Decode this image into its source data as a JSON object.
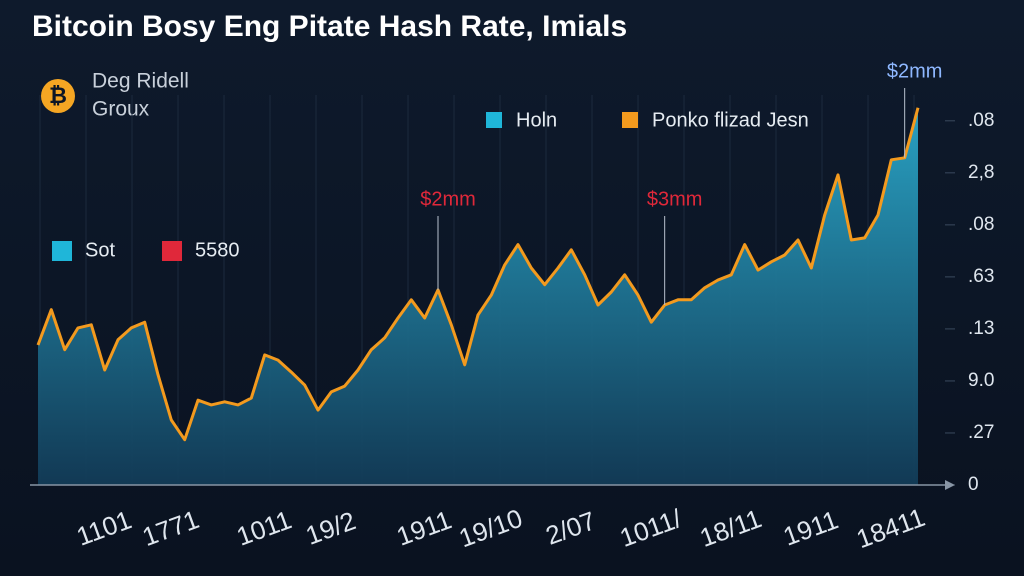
{
  "chart_data": {
    "type": "line",
    "title": "Bitcoin Bosy Eng Pitate Hash Rate, Imials",
    "subtitle": [
      "Deg Ridell",
      "Groux"
    ],
    "categories": [
      null,
      null,
      null,
      null,
      null,
      "1101",
      null,
      null,
      null,
      null,
      "1771",
      null,
      null,
      null,
      null,
      null,
      null,
      "1011",
      null,
      null,
      null,
      null,
      "19/2",
      null,
      null,
      null,
      null,
      null,
      null,
      "1911",
      null,
      null,
      null,
      null,
      "19/10",
      null,
      null,
      null,
      null,
      null,
      "2/07",
      null,
      null,
      null,
      null,
      null,
      "1011/",
      null,
      null,
      null,
      null,
      null,
      "18/11",
      null,
      null,
      null,
      null,
      null,
      "1911",
      null,
      null,
      null,
      null,
      null,
      "18411",
      null,
      null
    ],
    "series": [
      {
        "name": "Holn",
        "color": "#1fb6d9",
        "fill": true,
        "values": [
          2.69,
          3.37,
          2.6,
          3.02,
          3.08,
          2.21,
          2.79,
          3.02,
          3.13,
          2.12,
          1.25,
          0.87,
          1.63,
          1.54,
          1.6,
          1.54,
          1.67,
          2.5,
          2.4,
          2.17,
          1.92,
          1.44,
          1.79,
          1.9,
          2.21,
          2.6,
          2.83,
          3.21,
          3.56,
          3.21,
          3.75,
          3.08,
          2.31,
          3.27,
          3.65,
          4.23,
          4.62,
          4.17,
          3.85,
          4.17,
          4.52,
          4.04,
          3.46,
          3.71,
          4.04,
          3.65,
          3.13,
          3.46,
          3.56,
          3.56,
          3.79,
          3.94,
          4.04,
          4.62,
          4.13,
          4.29,
          4.42,
          4.71,
          4.17,
          5.19,
          5.96,
          4.71,
          4.75,
          5.19,
          6.25,
          6.29,
          7.25
        ]
      },
      {
        "name": "Ponko flizad Jesn",
        "color": "#f39a1e",
        "fill": false,
        "values": [
          2.69,
          3.37,
          2.6,
          3.02,
          3.08,
          2.21,
          2.79,
          3.02,
          3.13,
          2.12,
          1.25,
          0.87,
          1.63,
          1.54,
          1.6,
          1.54,
          1.67,
          2.5,
          2.4,
          2.17,
          1.92,
          1.44,
          1.79,
          1.9,
          2.21,
          2.6,
          2.83,
          3.21,
          3.56,
          3.21,
          3.75,
          3.08,
          2.31,
          3.27,
          3.65,
          4.23,
          4.62,
          4.17,
          3.85,
          4.17,
          4.52,
          4.04,
          3.46,
          3.71,
          4.04,
          3.65,
          3.13,
          3.46,
          3.56,
          3.56,
          3.79,
          3.94,
          4.04,
          4.62,
          4.13,
          4.29,
          4.42,
          4.71,
          4.17,
          5.19,
          5.96,
          4.71,
          4.75,
          5.19,
          6.25,
          6.29,
          7.25
        ]
      }
    ],
    "legend2": [
      {
        "name": "Sot",
        "color": "#1fb6d9"
      },
      {
        "name": "5580",
        "color": "#e0283a"
      }
    ],
    "annotations": [
      {
        "text": "$2mm",
        "at": 30,
        "color": "#e0283a"
      },
      {
        "text": "$3mm",
        "at": 47,
        "color": "#e0283a"
      },
      {
        "text": "$2mm",
        "at": 65,
        "color": "#8fb8ff"
      }
    ],
    "ylim": [
      0,
      7.4
    ],
    "yticks": [
      0,
      {
        "value": 1,
        "label": ".27"
      },
      {
        "value": 2,
        "label": "9.0"
      },
      {
        "value": 3,
        "label": ".13"
      },
      {
        "value": 4,
        "label": ".63"
      },
      {
        "value": 5,
        "label": ".08"
      },
      {
        "value": 6,
        "label": "2,8"
      },
      {
        "value": 7,
        "label": ".08"
      }
    ],
    "grid": true
  }
}
